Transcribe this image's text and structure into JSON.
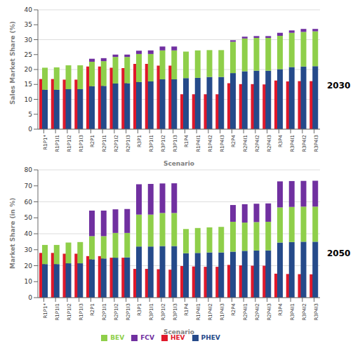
{
  "chart_data": [
    {
      "type": "bar",
      "title": "2030",
      "x_label": "Scenario",
      "y_label": "Sales Market Share (%)",
      "categories": [
        "R1P1*",
        "R1P1I1",
        "R1P1I2",
        "R1P1I3",
        "R2P1",
        "R2P1I1",
        "R2P1I2",
        "R2P1I3",
        "R3P1",
        "R3P1I1",
        "R3P1I2",
        "R3P1I3",
        "R1P4",
        "R1P4I1",
        "R1P4I2",
        "R1P4I3",
        "R2P4",
        "R2P4I1",
        "R2P4I2",
        "R2P4I3",
        "R3P4",
        "R3P4I1",
        "R3P4I2",
        "R3P4I3"
      ],
      "series": [
        {
          "name": "HEV",
          "color": "#e0182a",
          "stacked": false,
          "values": [
            16.8,
            16.8,
            16.6,
            16.6,
            21,
            21,
            20.6,
            20.5,
            21.9,
            21.9,
            21.3,
            21.3,
            11.7,
            11.7,
            11.7,
            11.7,
            15.4,
            15.1,
            15.1,
            15,
            16.3,
            16,
            16.1,
            16.1
          ]
        },
        {
          "name": "PHEV",
          "color": "#254a8a",
          "stacked": true,
          "values": [
            13.2,
            13.2,
            13.4,
            13.4,
            14.4,
            14.5,
            15.3,
            15.4,
            15.8,
            16,
            16.7,
            16.7,
            17.1,
            17.2,
            17.5,
            17.5,
            18.8,
            19.4,
            19.6,
            19.6,
            20.1,
            20.8,
            21,
            21.1
          ]
        },
        {
          "name": "BEV",
          "color": "#8fcf4a",
          "stacked": true,
          "values": [
            7.4,
            7.5,
            8,
            8,
            8.2,
            8.3,
            8.9,
            8.8,
            9.4,
            9.2,
            9.7,
            9.7,
            8.9,
            9.2,
            9,
            9,
            10.5,
            11,
            11,
            11,
            11.2,
            11.5,
            11.6,
            11.7
          ]
        },
        {
          "name": "FCV",
          "color": "#7030a0",
          "stacked": true,
          "values": [
            0,
            0,
            0,
            0,
            1,
            1,
            0.8,
            0.8,
            1.1,
            1.2,
            1.3,
            1.3,
            0,
            0,
            0,
            0,
            0.5,
            0.6,
            0.6,
            0.6,
            1,
            0.8,
            1,
            0.8
          ]
        }
      ],
      "ylim": [
        0,
        40
      ],
      "yticks": [
        0,
        5,
        10,
        15,
        20,
        25,
        30,
        35,
        40
      ]
    },
    {
      "type": "bar",
      "title": "2050",
      "x_label": "Scenario",
      "y_label": "Market Share (in %)",
      "categories": [
        "R1P1*",
        "R1P1I1",
        "R1P1I2",
        "R1P1I3",
        "R2P1",
        "R2P1I1",
        "R2P1I2",
        "R2P1I3",
        "R3P1",
        "R3P1I1",
        "R3P1I2",
        "R3P1I3",
        "R1P4",
        "R1P4I1",
        "R1P4I2",
        "R1P4I3",
        "R2P4",
        "R2P4I1",
        "R2P4I2",
        "R2P4I3",
        "R3P4",
        "R3P4I1",
        "R3P4I2",
        "R3P4I3"
      ],
      "series": [
        {
          "name": "HEV",
          "color": "#e0182a",
          "stacked": false,
          "values": [
            28,
            28,
            27.5,
            27.5,
            26,
            26,
            25,
            25,
            18,
            18,
            17.8,
            17.5,
            19.8,
            19.5,
            19.3,
            19.3,
            20.5,
            20.2,
            20,
            20,
            15,
            14.8,
            14.7,
            14.6
          ]
        },
        {
          "name": "PHEV",
          "color": "#254a8a",
          "stacked": true,
          "values": [
            21,
            21,
            21.5,
            21.5,
            24,
            24.5,
            25,
            25.2,
            32,
            32,
            32.3,
            32.3,
            27.8,
            28,
            28.3,
            28.3,
            28.8,
            29.3,
            29.5,
            29.6,
            34.5,
            34.8,
            35,
            35
          ]
        },
        {
          "name": "BEV",
          "color": "#8fcf4a",
          "stacked": true,
          "values": [
            12,
            12,
            13,
            13.3,
            14.5,
            14,
            15.5,
            15.3,
            20,
            20,
            20.7,
            20.7,
            15.2,
            15.6,
            15.7,
            16,
            18.7,
            17.7,
            17.8,
            17.9,
            22,
            22,
            22,
            22
          ]
        },
        {
          "name": "FCV",
          "color": "#7030a0",
          "stacked": true,
          "values": [
            0,
            0,
            0,
            0,
            16,
            16,
            14.8,
            15,
            19,
            19.2,
            18.5,
            18.6,
            0,
            0,
            0,
            0,
            10.5,
            11.5,
            11.5,
            11.5,
            16.3,
            16.2,
            16.1,
            16.2
          ]
        }
      ],
      "ylim": [
        0,
        80
      ],
      "yticks": [
        0,
        10,
        20,
        30,
        40,
        50,
        60,
        70,
        80
      ],
      "legend": "bottom"
    }
  ]
}
